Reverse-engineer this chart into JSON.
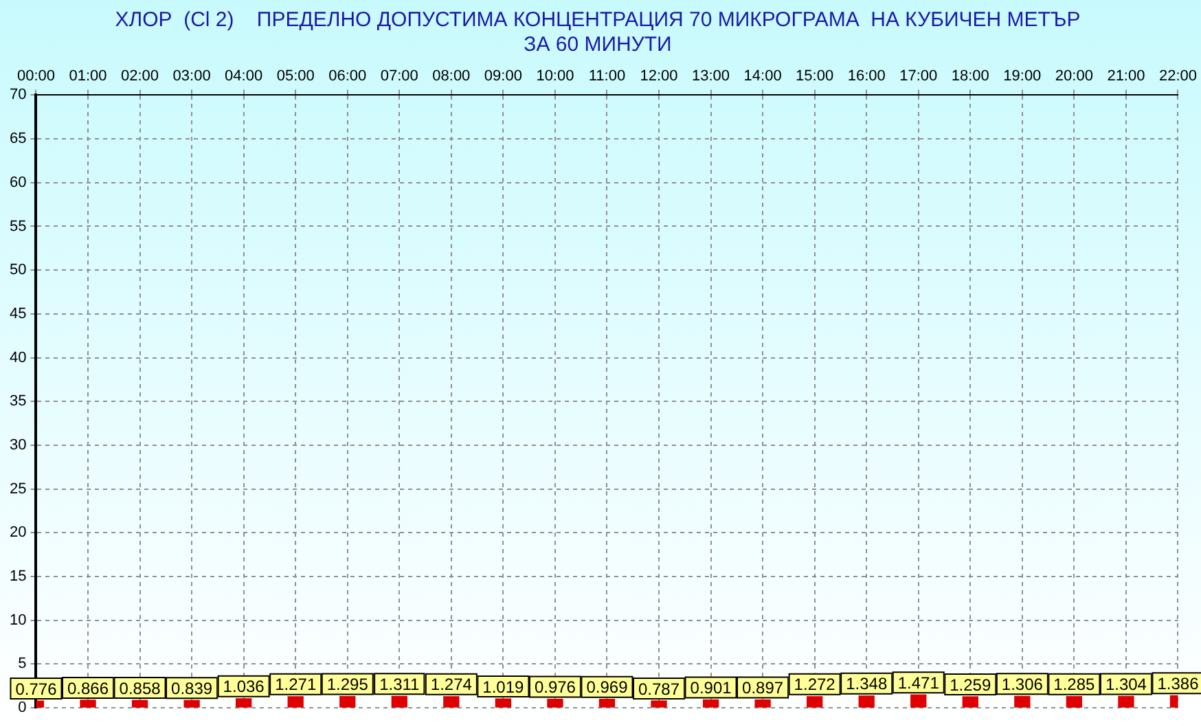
{
  "chart_data": {
    "type": "bar",
    "title": "ХЛОР  (Cl 2)    ПРЕДЕЛНО ДОПУСТИМА КОНЦЕНТРАЦИЯ 70 МИКРОГРАМА  НА КУБИЧЕН МЕТЪР",
    "subtitle": "ЗА 60 МИНУТИ",
    "categories": [
      "00:00",
      "01:00",
      "02:00",
      "03:00",
      "04:00",
      "05:00",
      "06:00",
      "07:00",
      "08:00",
      "09:00",
      "10:00",
      "11:00",
      "12:00",
      "13:00",
      "14:00",
      "15:00",
      "16:00",
      "17:00",
      "18:00",
      "19:00",
      "20:00",
      "21:00",
      "22:00"
    ],
    "values": [
      0.776,
      0.866,
      0.858,
      0.839,
      1.036,
      1.271,
      1.295,
      1.311,
      1.274,
      1.019,
      0.976,
      0.969,
      0.787,
      0.901,
      0.897,
      1.272,
      1.348,
      1.471,
      1.259,
      1.306,
      1.285,
      1.304,
      1.386
    ],
    "color": "#e00000",
    "ylim": [
      0,
      70
    ],
    "yticks": [
      0,
      5,
      10,
      15,
      20,
      25,
      30,
      35,
      40,
      45,
      50,
      55,
      60,
      65,
      70
    ],
    "grid": true,
    "data_labels": true
  }
}
